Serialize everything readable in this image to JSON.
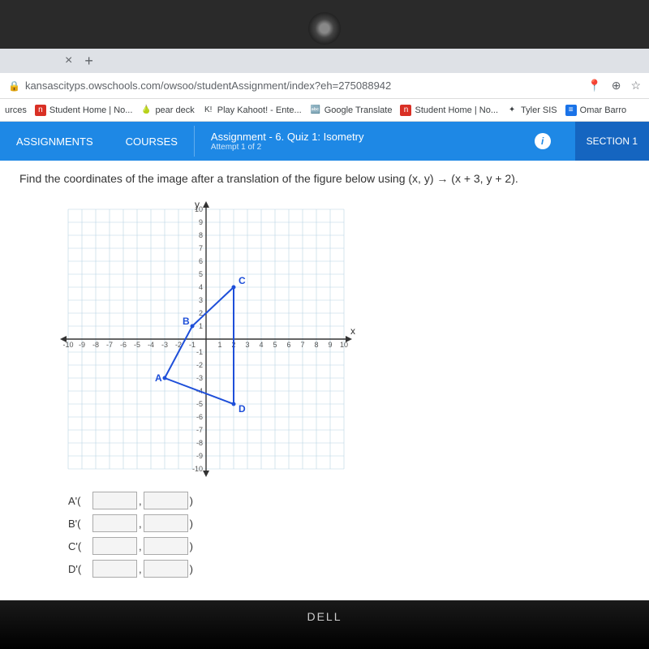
{
  "url": "kansascityps.owschools.com/owsoo/studentAssignment/index?eh=275088942",
  "bookmarks": {
    "label0": "urces",
    "items": [
      {
        "label": "Student Home | No...",
        "icon": "n",
        "cls": "red"
      },
      {
        "label": "pear deck",
        "icon": "🍐",
        "cls": ""
      },
      {
        "label": "Play Kahoot! - Ente...",
        "icon": "K!",
        "cls": ""
      },
      {
        "label": "Google Translate",
        "icon": "🔤",
        "cls": ""
      },
      {
        "label": "Student Home | No...",
        "icon": "n",
        "cls": "red"
      },
      {
        "label": "Tyler SIS",
        "icon": "✦",
        "cls": ""
      },
      {
        "label": "Omar Barro",
        "icon": "≡",
        "cls": "blue"
      }
    ]
  },
  "header": {
    "tab1": "ASSIGNMENTS",
    "tab2": "COURSES",
    "assignment_label": "Assignment",
    "assignment_title": "- 6. Quiz 1: Isometry",
    "attempt": "Attempt 1 of 2",
    "section": "SECTION 1"
  },
  "question": "Find the coordinates of the image after a translation of the figure below using (x, y) → (x + 3, y + 2).",
  "graph": {
    "xmin": -10,
    "xmax": 10,
    "ymin": -10,
    "ymax": 10,
    "grid_color": "#b8d4e3",
    "axis_color": "#333333",
    "line_color": "#1e4fd9",
    "line_width": 2,
    "bg": "#ffffff",
    "points": {
      "A": {
        "x": -3,
        "y": -3
      },
      "B": {
        "x": -1,
        "y": 1
      },
      "C": {
        "x": 2,
        "y": 4
      },
      "D": {
        "x": 2,
        "y": -5
      }
    },
    "xlabel": "x",
    "ylabel": "y",
    "tick_font": 9
  },
  "answers": [
    "A'",
    "B'",
    "C'",
    "D'"
  ],
  "laptop_brand": "DELL"
}
